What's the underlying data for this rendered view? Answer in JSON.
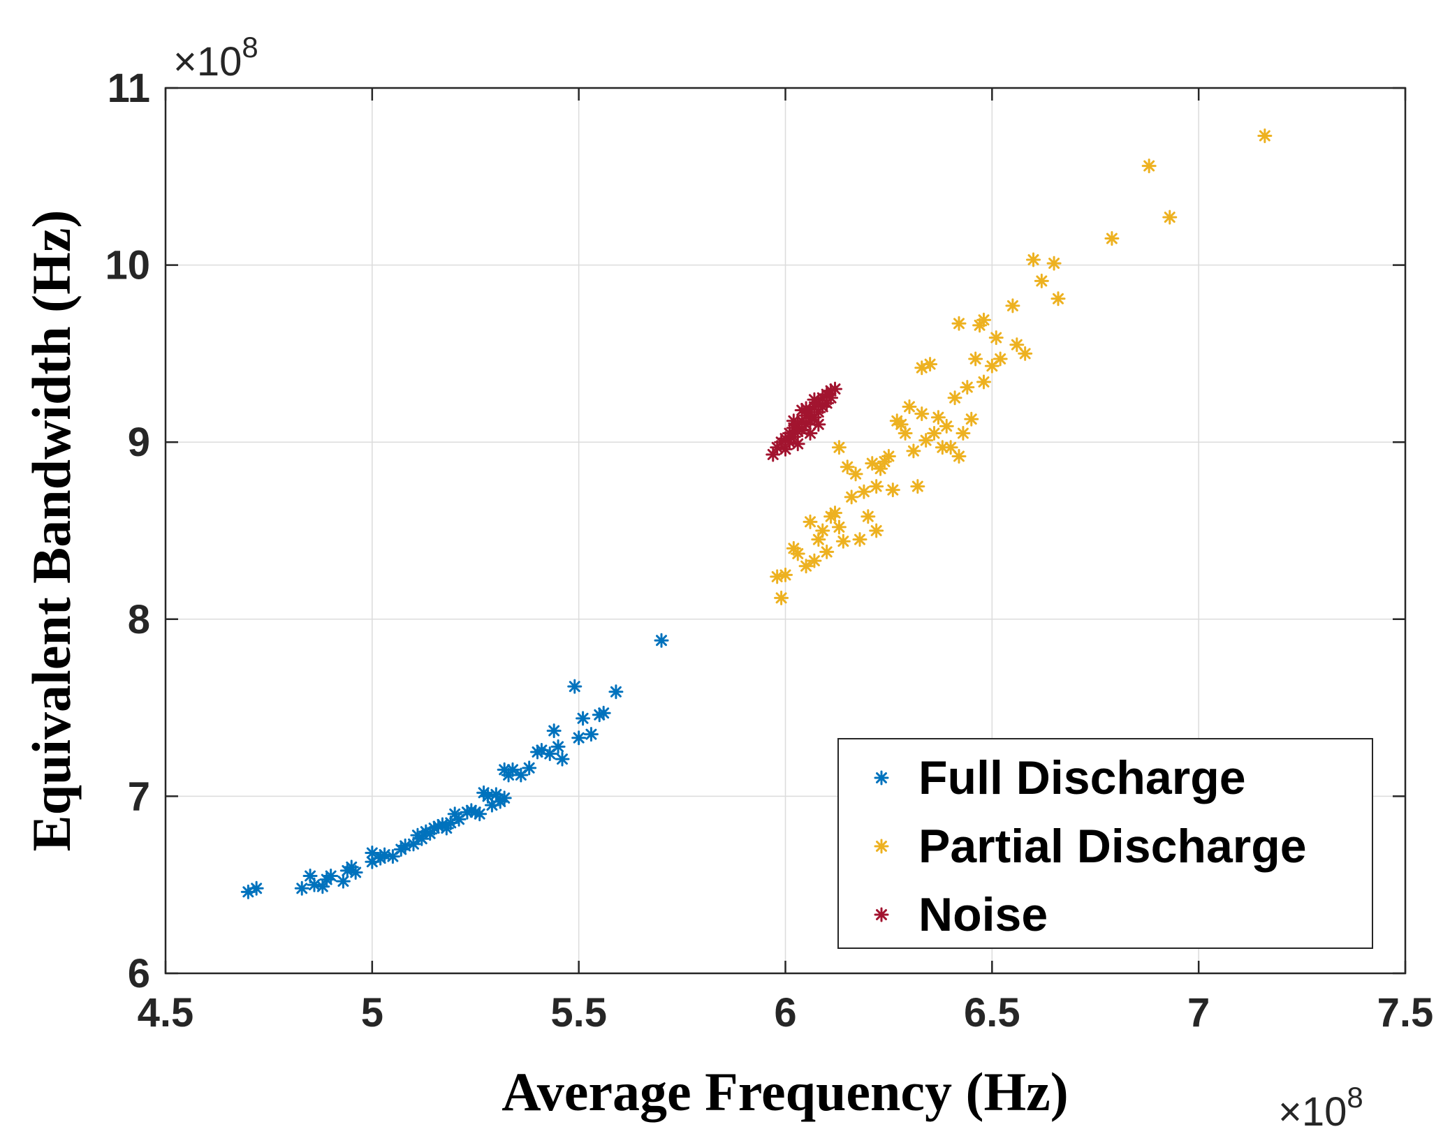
{
  "chart_data": {
    "type": "scatter",
    "xlabel": "Average Frequency (Hz)",
    "ylabel": "Equivalent Bandwidth (Hz)",
    "x_exponent_label": "×10",
    "x_exponent_power": "8",
    "y_exponent_label": "×10",
    "y_exponent_power": "8",
    "xlim": [
      4.5,
      7.5
    ],
    "ylim": [
      6,
      11
    ],
    "x_ticks": [
      4.5,
      5,
      5.5,
      6,
      6.5,
      7,
      7.5
    ],
    "x_tick_labels": [
      "4.5",
      "5",
      "5.5",
      "6",
      "6.5",
      "7",
      "7.5"
    ],
    "y_ticks": [
      6,
      7,
      8,
      9,
      10,
      11
    ],
    "y_tick_labels": [
      "6",
      "7",
      "8",
      "9",
      "10",
      "11"
    ],
    "grid": true,
    "legend_position": "bottom-right",
    "marker": "asterisk",
    "series": [
      {
        "name": "Full Discharge",
        "color": "#0072BD",
        "points": [
          [
            4.7,
            6.46
          ],
          [
            4.72,
            6.48
          ],
          [
            4.83,
            6.48
          ],
          [
            4.85,
            6.55
          ],
          [
            4.86,
            6.5
          ],
          [
            4.88,
            6.49
          ],
          [
            4.89,
            6.53
          ],
          [
            4.9,
            6.55
          ],
          [
            4.93,
            6.52
          ],
          [
            4.94,
            6.58
          ],
          [
            4.95,
            6.6
          ],
          [
            4.96,
            6.57
          ],
          [
            5.0,
            6.63
          ],
          [
            5.0,
            6.68
          ],
          [
            5.02,
            6.65
          ],
          [
            5.03,
            6.67
          ],
          [
            5.05,
            6.66
          ],
          [
            5.07,
            6.7
          ],
          [
            5.08,
            6.72
          ],
          [
            5.1,
            6.73
          ],
          [
            5.11,
            6.78
          ],
          [
            5.12,
            6.76
          ],
          [
            5.13,
            6.8
          ],
          [
            5.14,
            6.79
          ],
          [
            5.15,
            6.82
          ],
          [
            5.16,
            6.83
          ],
          [
            5.17,
            6.84
          ],
          [
            5.18,
            6.82
          ],
          [
            5.19,
            6.85
          ],
          [
            5.2,
            6.9
          ],
          [
            5.21,
            6.87
          ],
          [
            5.23,
            6.91
          ],
          [
            5.24,
            6.92
          ],
          [
            5.25,
            6.91
          ],
          [
            5.26,
            6.9
          ],
          [
            5.27,
            7.02
          ],
          [
            5.28,
            7.0
          ],
          [
            5.29,
            6.95
          ],
          [
            5.3,
            7.01
          ],
          [
            5.31,
            6.97
          ],
          [
            5.32,
            6.99
          ],
          [
            5.32,
            7.15
          ],
          [
            5.33,
            7.12
          ],
          [
            5.34,
            7.15
          ],
          [
            5.36,
            7.12
          ],
          [
            5.38,
            7.16
          ],
          [
            5.4,
            7.25
          ],
          [
            5.41,
            7.26
          ],
          [
            5.43,
            7.24
          ],
          [
            5.44,
            7.37
          ],
          [
            5.45,
            7.28
          ],
          [
            5.46,
            7.21
          ],
          [
            5.49,
            7.62
          ],
          [
            5.5,
            7.33
          ],
          [
            5.51,
            7.44
          ],
          [
            5.53,
            7.35
          ],
          [
            5.55,
            7.46
          ],
          [
            5.56,
            7.47
          ],
          [
            5.59,
            7.59
          ],
          [
            5.7,
            7.88
          ]
        ]
      },
      {
        "name": "Partial Discharge",
        "color": "#EDB120",
        "points": [
          [
            5.98,
            8.24
          ],
          [
            5.99,
            8.12
          ],
          [
            6.0,
            8.25
          ],
          [
            6.02,
            8.4
          ],
          [
            6.03,
            8.37
          ],
          [
            6.05,
            8.3
          ],
          [
            6.06,
            8.55
          ],
          [
            6.07,
            8.33
          ],
          [
            6.08,
            8.45
          ],
          [
            6.09,
            8.5
          ],
          [
            6.1,
            8.38
          ],
          [
            6.11,
            8.58
          ],
          [
            6.12,
            8.6
          ],
          [
            6.13,
            8.52
          ],
          [
            6.13,
            8.97
          ],
          [
            6.14,
            8.44
          ],
          [
            6.15,
            8.86
          ],
          [
            6.16,
            8.69
          ],
          [
            6.17,
            8.82
          ],
          [
            6.18,
            8.45
          ],
          [
            6.19,
            8.72
          ],
          [
            6.2,
            8.58
          ],
          [
            6.21,
            8.88
          ],
          [
            6.22,
            8.5
          ],
          [
            6.22,
            8.75
          ],
          [
            6.23,
            8.85
          ],
          [
            6.24,
            8.89
          ],
          [
            6.25,
            8.92
          ],
          [
            6.26,
            8.73
          ],
          [
            6.27,
            9.12
          ],
          [
            6.28,
            9.1
          ],
          [
            6.29,
            9.05
          ],
          [
            6.3,
            9.2
          ],
          [
            6.31,
            8.95
          ],
          [
            6.32,
            8.75
          ],
          [
            6.33,
            9.16
          ],
          [
            6.33,
            9.42
          ],
          [
            6.34,
            9.01
          ],
          [
            6.35,
            9.44
          ],
          [
            6.36,
            9.05
          ],
          [
            6.37,
            9.14
          ],
          [
            6.38,
            8.97
          ],
          [
            6.39,
            9.09
          ],
          [
            6.4,
            8.97
          ],
          [
            6.41,
            9.25
          ],
          [
            6.42,
            8.92
          ],
          [
            6.42,
            9.67
          ],
          [
            6.43,
            9.05
          ],
          [
            6.44,
            9.31
          ],
          [
            6.45,
            9.13
          ],
          [
            6.46,
            9.47
          ],
          [
            6.47,
            9.66
          ],
          [
            6.48,
            9.69
          ],
          [
            6.48,
            9.34
          ],
          [
            6.5,
            9.43
          ],
          [
            6.51,
            9.59
          ],
          [
            6.52,
            9.47
          ],
          [
            6.55,
            9.77
          ],
          [
            6.56,
            9.55
          ],
          [
            6.58,
            9.5
          ],
          [
            6.6,
            10.03
          ],
          [
            6.62,
            9.91
          ],
          [
            6.65,
            10.01
          ],
          [
            6.66,
            9.81
          ],
          [
            6.79,
            10.15
          ],
          [
            6.88,
            10.56
          ],
          [
            6.93,
            10.27
          ],
          [
            7.16,
            10.73
          ]
        ]
      },
      {
        "name": "Noise",
        "color": "#A2142F",
        "points": [
          [
            5.97,
            8.93
          ],
          [
            5.98,
            8.97
          ],
          [
            5.99,
            9.0
          ],
          [
            6.0,
            9.02
          ],
          [
            6.0,
            8.96
          ],
          [
            6.01,
            9.05
          ],
          [
            6.01,
            9.0
          ],
          [
            6.02,
            9.08
          ],
          [
            6.02,
            9.03
          ],
          [
            6.03,
            9.1
          ],
          [
            6.03,
            9.06
          ],
          [
            6.04,
            9.12
          ],
          [
            6.04,
            9.07
          ],
          [
            6.05,
            9.15
          ],
          [
            6.05,
            9.1
          ],
          [
            6.06,
            9.17
          ],
          [
            6.06,
            9.12
          ],
          [
            6.07,
            9.2
          ],
          [
            6.07,
            9.14
          ],
          [
            6.08,
            9.22
          ],
          [
            6.08,
            9.17
          ],
          [
            6.09,
            9.25
          ],
          [
            6.09,
            9.2
          ],
          [
            6.1,
            9.27
          ],
          [
            6.1,
            9.22
          ],
          [
            6.11,
            9.29
          ],
          [
            6.11,
            9.25
          ],
          [
            6.12,
            9.3
          ],
          [
            6.04,
            9.18
          ],
          [
            6.06,
            9.05
          ],
          [
            6.03,
            8.99
          ],
          [
            6.08,
            9.1
          ],
          [
            6.05,
            9.19
          ],
          [
            6.02,
            9.12
          ],
          [
            6.07,
            9.24
          ]
        ]
      }
    ]
  }
}
